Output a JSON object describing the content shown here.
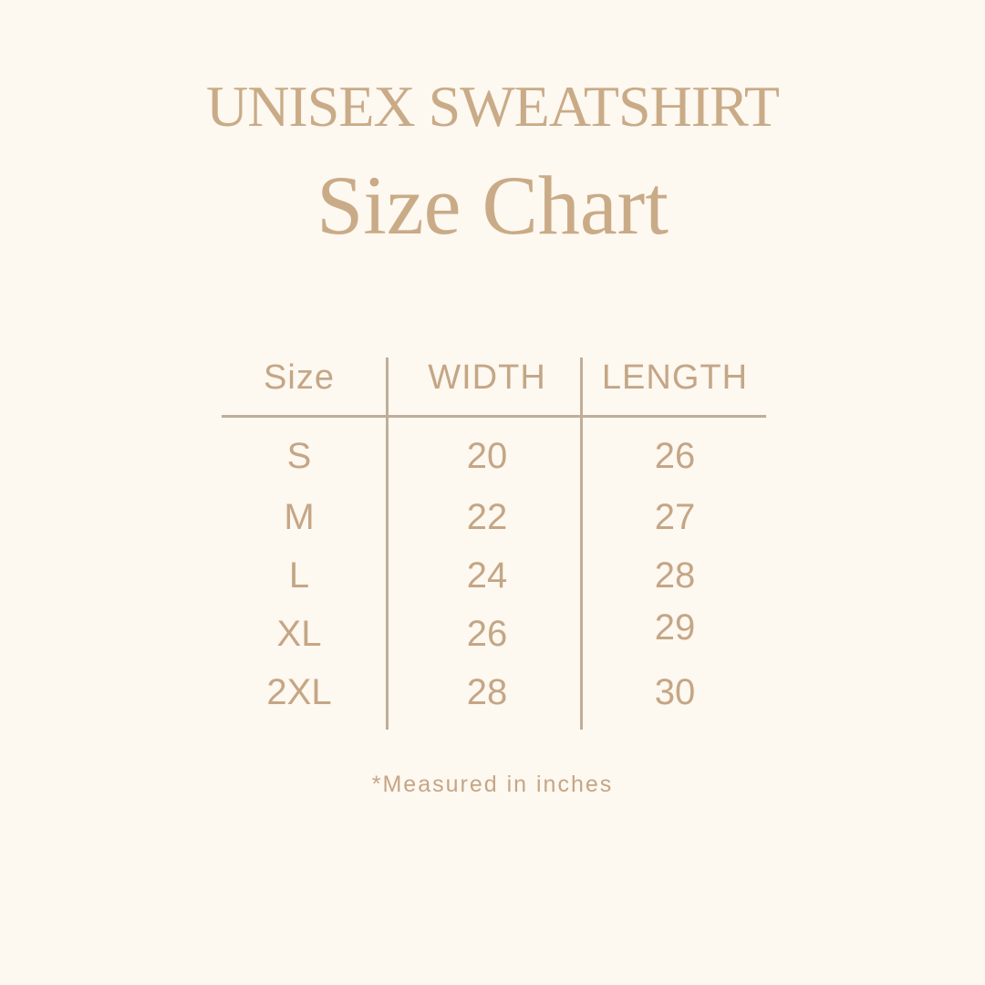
{
  "title": "UNISEX SWEATSHIRT",
  "subtitle": "Size Chart",
  "table": {
    "headers": [
      "Size",
      "WIDTH",
      "LENGTH"
    ],
    "rows": [
      [
        "S",
        "20",
        "26"
      ],
      [
        "M",
        "22",
        "27"
      ],
      [
        "L",
        "24",
        "28"
      ],
      [
        "XL",
        "26",
        "29"
      ],
      [
        "2XL",
        "28",
        "30"
      ]
    ]
  },
  "footnote": "*Measured in inches",
  "colors": {
    "background": "#fdf8f0",
    "text": "#c4a686",
    "lines": "#bfae9a"
  }
}
